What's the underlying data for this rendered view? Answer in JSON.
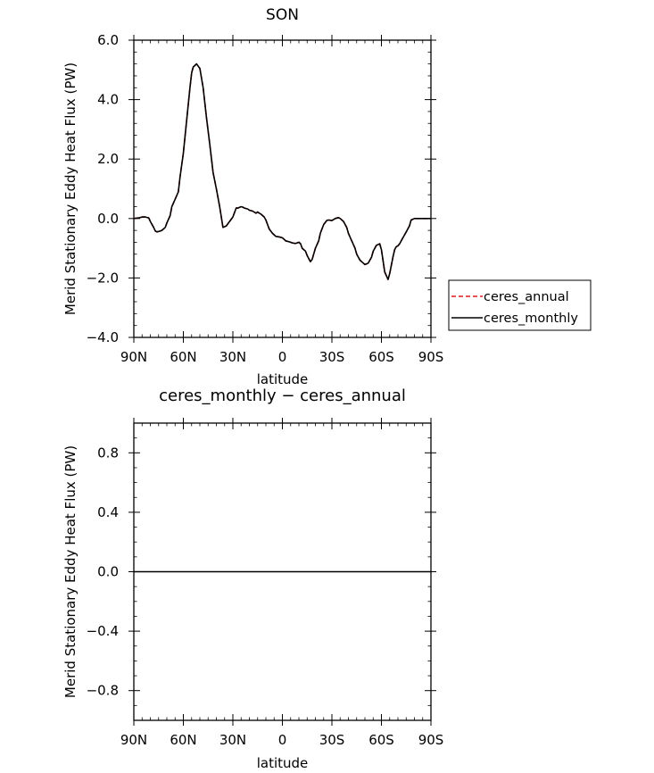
{
  "chart_data": [
    {
      "type": "line",
      "title": "SON",
      "xlabel": "latitude",
      "ylabel": "Merid Stationary Eddy Heat Flux (PW)",
      "xlim": [
        90,
        -90
      ],
      "ylim": [
        -4,
        6
      ],
      "xticks": [
        90,
        60,
        30,
        0,
        -30,
        -60,
        -90
      ],
      "xtick_labels": [
        "90N",
        "60N",
        "30N",
        "0",
        "30S",
        "60S",
        "90S"
      ],
      "yticks": [
        6,
        4,
        2,
        0,
        -2,
        -4
      ],
      "ytick_labels": [
        "6.0",
        "4.0",
        "2.0",
        "0.0",
        "−2.0",
        "−4.0"
      ],
      "grid": false,
      "legend": "right",
      "series": [
        {
          "name": "ceres_annual",
          "color": "#e41a1c",
          "dash": "dashed",
          "x": [
            90,
            87,
            85,
            83,
            81,
            80,
            78,
            77,
            76,
            74,
            73,
            71,
            70,
            68,
            67,
            65,
            63,
            62,
            60,
            58,
            56,
            55,
            54,
            52,
            50,
            48,
            46,
            44,
            42,
            40,
            38,
            36,
            34,
            32,
            30,
            28,
            27,
            25,
            24,
            23,
            21,
            20,
            18,
            16,
            15,
            14,
            13,
            12,
            11,
            10,
            8,
            6,
            5,
            4,
            2,
            0,
            -1,
            -2,
            -4,
            -6,
            -8,
            -10,
            -11,
            -12,
            -14,
            -15,
            -17,
            -18,
            -20,
            -22,
            -23,
            -25,
            -27,
            -28,
            -30,
            -32,
            -34,
            -35,
            -37,
            -39,
            -40,
            -42,
            -44,
            -45,
            -47,
            -49,
            -50,
            -52,
            -54,
            -55,
            -57,
            -59,
            -60,
            -62,
            -64,
            -65,
            -67,
            -68,
            -69,
            -70,
            -71,
            -72,
            -73,
            -75,
            -77,
            -78,
            -80,
            -82,
            -84,
            -86,
            -88,
            -90
          ],
          "y": [
            0.0,
            0.02,
            0.05,
            0.05,
            0.02,
            -0.1,
            -0.3,
            -0.42,
            -0.45,
            -0.42,
            -0.4,
            -0.3,
            -0.15,
            0.1,
            0.4,
            0.65,
            0.9,
            1.4,
            2.2,
            3.3,
            4.4,
            4.9,
            5.1,
            5.2,
            5.05,
            4.4,
            3.4,
            2.5,
            1.55,
            1.0,
            0.4,
            -0.3,
            -0.25,
            -0.1,
            0.05,
            0.35,
            0.35,
            0.4,
            0.38,
            0.35,
            0.32,
            0.28,
            0.25,
            0.18,
            0.22,
            0.18,
            0.15,
            0.1,
            0.05,
            -0.05,
            -0.35,
            -0.5,
            -0.55,
            -0.6,
            -0.62,
            -0.65,
            -0.7,
            -0.75,
            -0.78,
            -0.82,
            -0.84,
            -0.8,
            -0.85,
            -1.0,
            -1.1,
            -1.25,
            -1.45,
            -1.38,
            -1.0,
            -0.75,
            -0.5,
            -0.2,
            -0.06,
            -0.05,
            -0.07,
            0.0,
            0.03,
            0.0,
            -0.1,
            -0.3,
            -0.5,
            -0.75,
            -1.0,
            -1.2,
            -1.4,
            -1.5,
            -1.55,
            -1.5,
            -1.3,
            -1.1,
            -0.9,
            -0.85,
            -1.05,
            -1.8,
            -2.05,
            -1.85,
            -1.3,
            -1.05,
            -0.95,
            -0.92,
            -0.85,
            -0.75,
            -0.65,
            -0.45,
            -0.25,
            -0.05,
            0.0,
            0.0,
            0.0,
            0.0,
            0.0,
            0.0
          ]
        },
        {
          "name": "ceres_monthly",
          "color": "#000000",
          "dash": "solid",
          "x": [
            90,
            87,
            85,
            83,
            81,
            80,
            78,
            77,
            76,
            74,
            73,
            71,
            70,
            68,
            67,
            65,
            63,
            62,
            60,
            58,
            56,
            55,
            54,
            52,
            50,
            48,
            46,
            44,
            42,
            40,
            38,
            36,
            34,
            32,
            30,
            28,
            27,
            25,
            24,
            23,
            21,
            20,
            18,
            16,
            15,
            14,
            13,
            12,
            11,
            10,
            8,
            6,
            5,
            4,
            2,
            0,
            -1,
            -2,
            -4,
            -6,
            -8,
            -10,
            -11,
            -12,
            -14,
            -15,
            -17,
            -18,
            -20,
            -22,
            -23,
            -25,
            -27,
            -28,
            -30,
            -32,
            -34,
            -35,
            -37,
            -39,
            -40,
            -42,
            -44,
            -45,
            -47,
            -49,
            -50,
            -52,
            -54,
            -55,
            -57,
            -59,
            -60,
            -62,
            -64,
            -65,
            -67,
            -68,
            -69,
            -70,
            -71,
            -72,
            -73,
            -75,
            -77,
            -78,
            -80,
            -82,
            -84,
            -86,
            -88,
            -90
          ],
          "y": [
            0.0,
            0.02,
            0.05,
            0.05,
            0.02,
            -0.1,
            -0.3,
            -0.42,
            -0.45,
            -0.42,
            -0.4,
            -0.3,
            -0.15,
            0.1,
            0.4,
            0.65,
            0.9,
            1.4,
            2.2,
            3.3,
            4.4,
            4.9,
            5.1,
            5.2,
            5.05,
            4.4,
            3.4,
            2.5,
            1.55,
            1.0,
            0.4,
            -0.3,
            -0.25,
            -0.1,
            0.05,
            0.35,
            0.35,
            0.4,
            0.38,
            0.35,
            0.32,
            0.28,
            0.25,
            0.18,
            0.22,
            0.18,
            0.15,
            0.1,
            0.05,
            -0.05,
            -0.35,
            -0.5,
            -0.55,
            -0.6,
            -0.62,
            -0.65,
            -0.7,
            -0.75,
            -0.78,
            -0.82,
            -0.84,
            -0.8,
            -0.85,
            -1.0,
            -1.1,
            -1.25,
            -1.45,
            -1.38,
            -1.0,
            -0.75,
            -0.5,
            -0.2,
            -0.06,
            -0.05,
            -0.07,
            0.0,
            0.03,
            0.0,
            -0.1,
            -0.3,
            -0.5,
            -0.75,
            -1.0,
            -1.2,
            -1.4,
            -1.5,
            -1.55,
            -1.5,
            -1.3,
            -1.1,
            -0.9,
            -0.85,
            -1.05,
            -1.8,
            -2.05,
            -1.85,
            -1.3,
            -1.05,
            -0.95,
            -0.92,
            -0.85,
            -0.75,
            -0.65,
            -0.45,
            -0.25,
            -0.05,
            0.0,
            0.0,
            0.0,
            0.0,
            0.0,
            0.0
          ]
        }
      ]
    },
    {
      "type": "line",
      "title": "ceres_monthly − ceres_annual",
      "xlabel": "latitude",
      "ylabel": "Merid Stationary Eddy Heat Flux (PW)",
      "xlim": [
        90,
        -90
      ],
      "ylim": [
        -1,
        1
      ],
      "xticks": [
        90,
        60,
        30,
        0,
        -30,
        -60,
        -90
      ],
      "xtick_labels": [
        "90N",
        "60N",
        "30N",
        "0",
        "30S",
        "60S",
        "90S"
      ],
      "yticks": [
        0.8,
        0.4,
        0.0,
        -0.4,
        -0.8
      ],
      "ytick_labels": [
        "0.8",
        "0.4",
        "0.0",
        "−0.4",
        "−0.8"
      ],
      "grid": false,
      "series": [
        {
          "color": "#000000",
          "dash": "solid",
          "x": [
            90,
            60,
            30,
            0,
            -30,
            -60,
            -90
          ],
          "y": [
            0,
            0,
            0,
            0,
            0,
            0,
            0
          ]
        }
      ]
    }
  ]
}
